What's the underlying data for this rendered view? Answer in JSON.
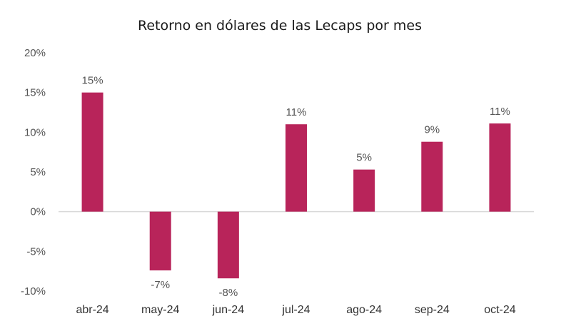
{
  "chart_data": {
    "type": "bar",
    "title": "Retorno en dólares de las Lecaps por mes",
    "xlabel": "",
    "ylabel": "",
    "categories": [
      "abr-24",
      "may-24",
      "jun-24",
      "jul-24",
      "ago-24",
      "sep-24",
      "oct-24"
    ],
    "values": [
      15.0,
      -7.4,
      -8.4,
      11.0,
      5.3,
      8.8,
      11.1
    ],
    "data_labels": [
      "15%",
      "-7%",
      "-8%",
      "11%",
      "5%",
      "9%",
      "11%"
    ],
    "yticks": [
      "20%",
      "15%",
      "10%",
      "5%",
      "0%",
      "-5%",
      "-10%"
    ],
    "ylim": [
      -10,
      20
    ],
    "grid": false,
    "legend": "none",
    "bar_color": "#b8245a",
    "zero_line_color": "#d9d9d9"
  }
}
